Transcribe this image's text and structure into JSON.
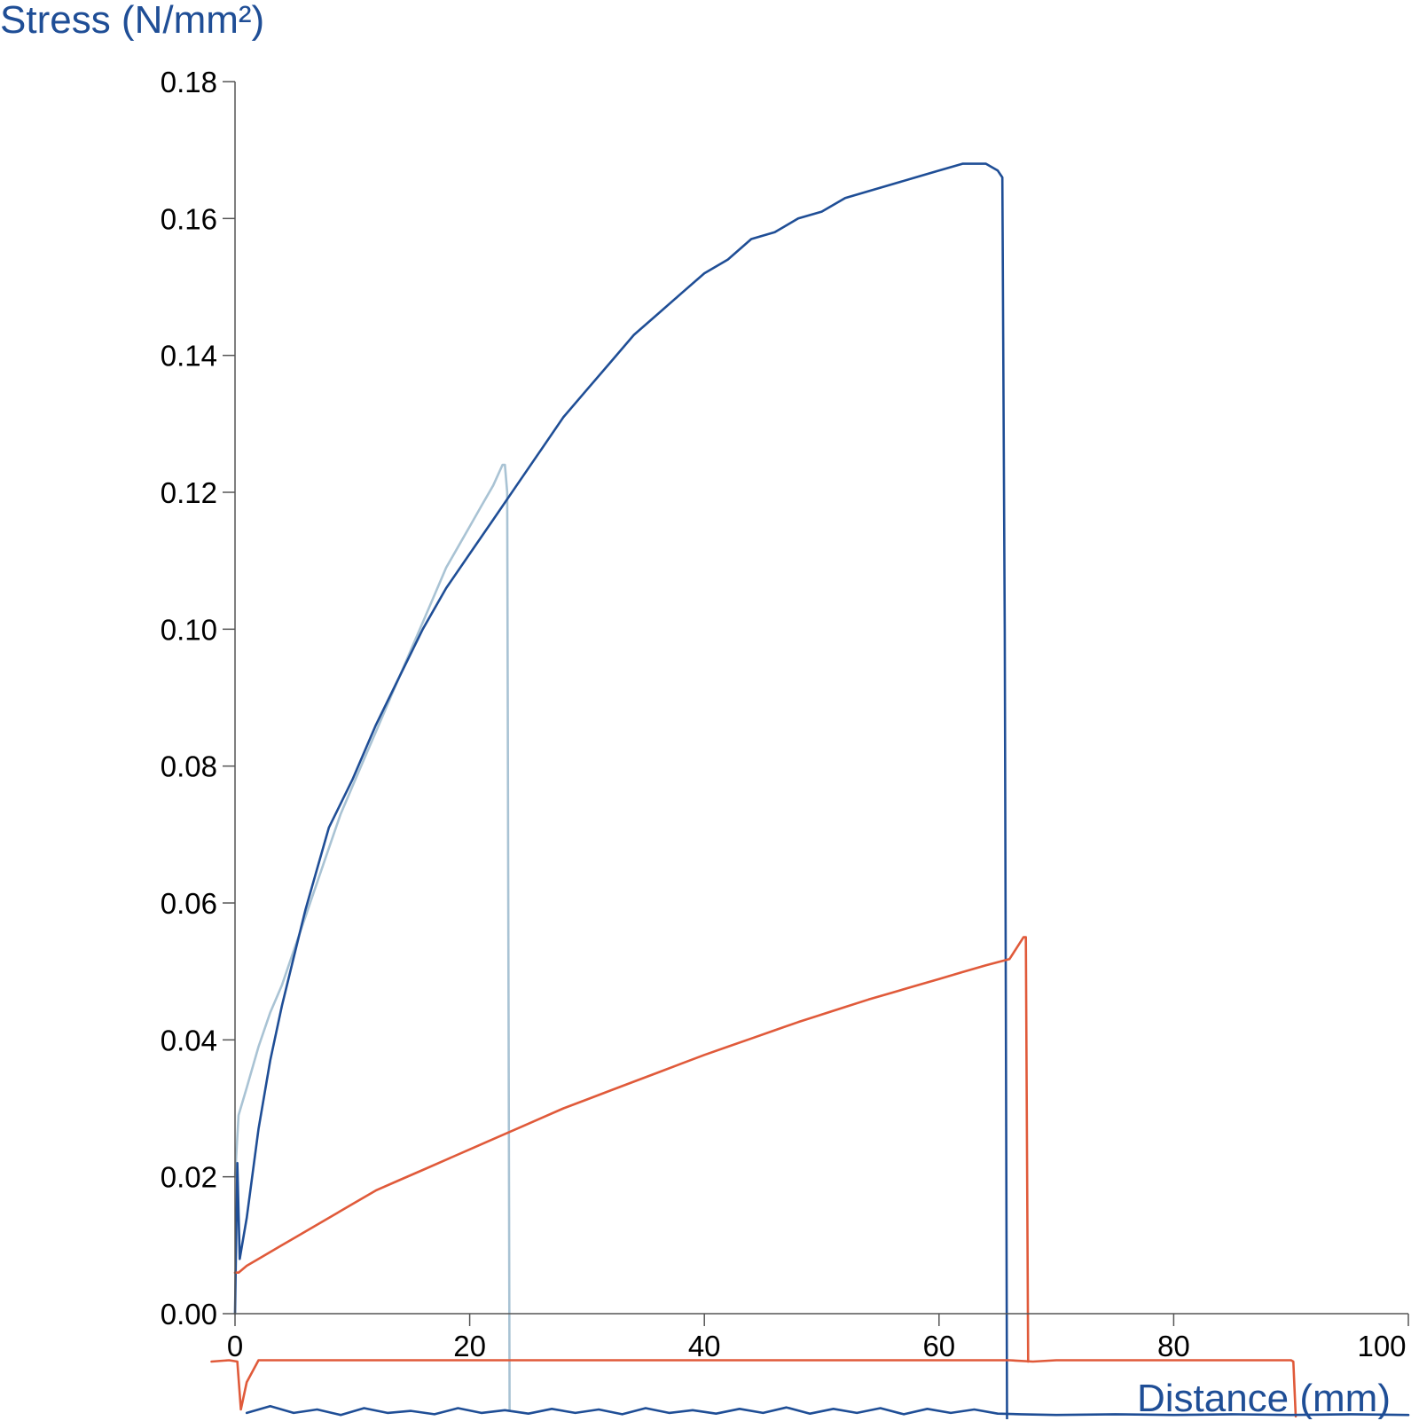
{
  "chart_data": {
    "type": "line",
    "title": "",
    "ylabel": "Stress (N/mm²)",
    "xlabel": "Distance (mm)",
    "xlim": [
      0,
      100
    ],
    "ylim": [
      0,
      0.18
    ],
    "xticks": [
      "0",
      "20",
      "40",
      "60",
      "80",
      "100"
    ],
    "yticks": [
      "0.00",
      "0.02",
      "0.04",
      "0.06",
      "0.08",
      "0.10",
      "0.12",
      "0.14",
      "0.16",
      "0.18"
    ],
    "grid": false,
    "legend": "none",
    "series": [
      {
        "color": "#a9c3d4",
        "x": [
          0,
          0.3,
          1,
          2,
          3,
          4,
          5,
          6,
          7,
          8,
          9,
          10,
          11,
          12,
          13,
          14,
          15,
          16,
          17,
          18,
          19,
          20,
          21,
          22,
          22.8,
          23.0,
          23.2,
          23.4
        ],
        "y": [
          0.02,
          0.029,
          0.033,
          0.039,
          0.044,
          0.048,
          0.053,
          0.058,
          0.063,
          0.068,
          0.073,
          0.077,
          0.081,
          0.085,
          0.089,
          0.093,
          0.097,
          0.101,
          0.105,
          0.109,
          0.112,
          0.115,
          0.118,
          0.121,
          0.124,
          0.124,
          0.12,
          -0.014
        ]
      },
      {
        "color": "#1f4e96",
        "x": [
          0,
          0.2,
          0.4,
          1,
          2,
          3,
          4,
          5,
          6,
          7,
          8,
          10,
          12,
          14,
          16,
          18,
          20,
          22,
          24,
          26,
          28,
          30,
          32,
          34,
          36,
          38,
          40,
          42,
          44,
          46,
          48,
          50,
          52,
          54,
          56,
          58,
          60,
          62,
          63,
          64,
          65,
          65.4,
          65.6,
          65.8
        ],
        "y": [
          0.0,
          0.022,
          0.008,
          0.014,
          0.027,
          0.037,
          0.045,
          0.052,
          0.059,
          0.065,
          0.071,
          0.078,
          0.086,
          0.093,
          0.1,
          0.106,
          0.111,
          0.116,
          0.121,
          0.126,
          0.131,
          0.135,
          0.139,
          0.143,
          0.146,
          0.149,
          0.152,
          0.154,
          0.157,
          0.158,
          0.16,
          0.161,
          0.163,
          0.164,
          0.165,
          0.166,
          0.167,
          0.168,
          0.168,
          0.168,
          0.167,
          0.166,
          0.1,
          -0.016
        ]
      },
      {
        "color": "#e05a3a",
        "x": [
          0,
          0.3,
          1,
          2,
          4,
          6,
          8,
          10,
          12,
          14,
          16,
          18,
          20,
          22,
          24,
          26,
          28,
          30,
          32,
          34,
          36,
          38,
          40,
          42,
          44,
          46,
          48,
          50,
          52,
          54,
          56,
          58,
          60,
          62,
          64,
          66,
          67.2,
          67.4,
          67.6
        ],
        "y": [
          0.006,
          0.006,
          0.007,
          0.008,
          0.01,
          0.012,
          0.014,
          0.016,
          0.018,
          0.0195,
          0.021,
          0.0225,
          0.024,
          0.0255,
          0.027,
          0.0285,
          0.03,
          0.0313,
          0.0326,
          0.0339,
          0.0352,
          0.0365,
          0.0378,
          0.039,
          0.0402,
          0.0414,
          0.0426,
          0.0437,
          0.0448,
          0.0459,
          0.0469,
          0.0479,
          0.0489,
          0.0499,
          0.0509,
          0.0518,
          0.055,
          0.055,
          -0.007
        ]
      },
      {
        "color": "#e05a3a",
        "x": [
          -2,
          -0.5,
          0.2,
          0.5,
          1,
          2,
          5,
          10,
          20,
          30,
          40,
          50,
          60,
          66,
          68,
          70,
          75,
          80,
          85,
          90,
          90.2,
          90.4
        ],
        "y": [
          -0.007,
          -0.0068,
          -0.007,
          -0.014,
          -0.01,
          -0.0068,
          -0.0068,
          -0.0068,
          -0.0068,
          -0.0068,
          -0.0068,
          -0.0068,
          -0.0068,
          -0.0068,
          -0.007,
          -0.0068,
          -0.0068,
          -0.0068,
          -0.0068,
          -0.0068,
          -0.007,
          -0.015
        ]
      },
      {
        "color": "#1f4e96",
        "x": [
          1,
          3,
          5,
          7,
          9,
          11,
          13,
          15,
          17,
          19,
          21,
          23,
          25,
          27,
          29,
          31,
          33,
          35,
          37,
          39,
          41,
          43,
          45,
          47,
          49,
          51,
          53,
          55,
          57,
          59,
          61,
          63,
          65,
          67,
          70,
          75,
          80,
          85,
          90,
          95,
          100
        ],
        "y": [
          -0.0145,
          -0.0135,
          -0.0145,
          -0.014,
          -0.0148,
          -0.0138,
          -0.0145,
          -0.0142,
          -0.0147,
          -0.0138,
          -0.0145,
          -0.0141,
          -0.0146,
          -0.0139,
          -0.0145,
          -0.014,
          -0.0147,
          -0.0138,
          -0.0145,
          -0.0141,
          -0.0146,
          -0.0139,
          -0.0145,
          -0.0137,
          -0.0146,
          -0.0139,
          -0.0145,
          -0.0138,
          -0.0147,
          -0.0139,
          -0.0145,
          -0.014,
          -0.0146,
          -0.0147,
          -0.0148,
          -0.0147,
          -0.0148,
          -0.0147,
          -0.0148,
          -0.0147,
          -0.0148
        ]
      }
    ]
  }
}
